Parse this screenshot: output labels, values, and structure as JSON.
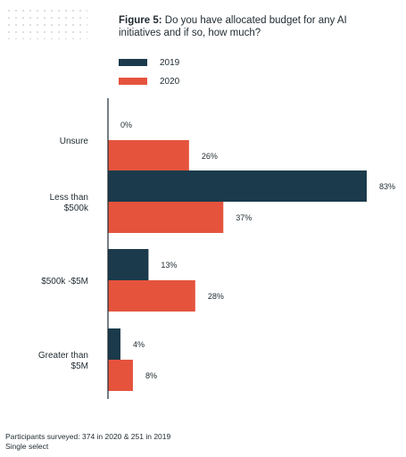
{
  "title_prefix": "Figure 5:",
  "title_text": " Do you have allocated budget for any AI initiatives and if so, how much?",
  "footnote": {
    "line1": "Participants surveyed: 374 in 2020 & 251 in 2019",
    "line2": "Single select"
  },
  "chart_data": {
    "type": "bar",
    "orientation": "horizontal",
    "title": "Do you have allocated budget for any AI initiatives and if so, how much?",
    "categories": [
      [
        "Unsure"
      ],
      [
        "Less than",
        "$500k"
      ],
      [
        "$500k -$5M"
      ],
      [
        "Greater than",
        "$5M"
      ]
    ],
    "series": [
      {
        "name": "2019",
        "color": "#1b3a4b",
        "values": [
          0,
          83,
          13,
          4
        ]
      },
      {
        "name": "2020",
        "color": "#e5533d",
        "values": [
          26,
          37,
          28,
          8
        ]
      }
    ],
    "value_suffix": "%",
    "xlim": [
      0,
      100
    ],
    "grid": false,
    "legend_position": "top-left"
  }
}
